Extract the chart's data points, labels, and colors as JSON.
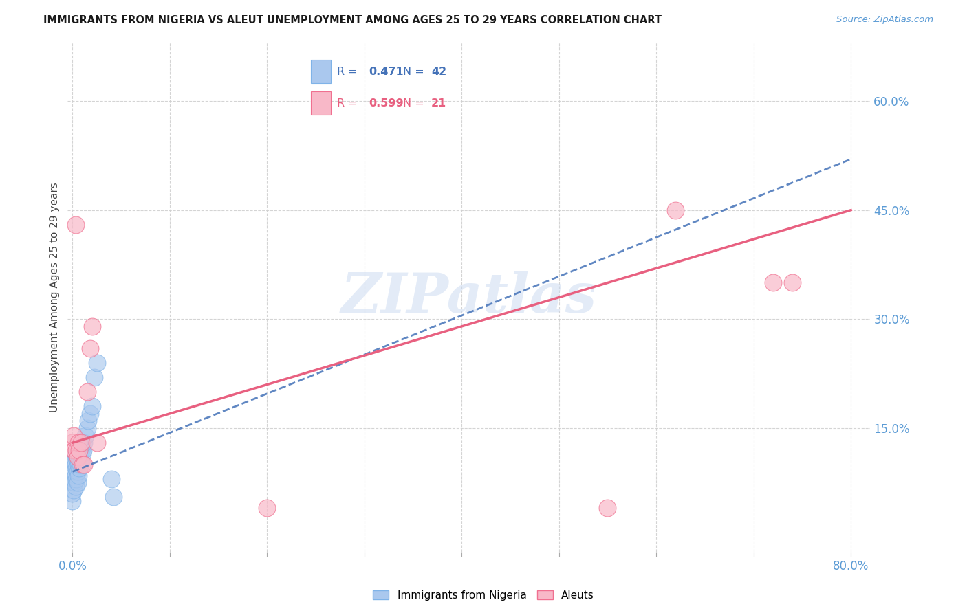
{
  "title": "IMMIGRANTS FROM NIGERIA VS ALEUT UNEMPLOYMENT AMONG AGES 25 TO 29 YEARS CORRELATION CHART",
  "source": "Source: ZipAtlas.com",
  "ylabel": "Unemployment Among Ages 25 to 29 years",
  "watermark": "ZIPatlas",
  "nigeria_R": "0.471",
  "nigeria_N": "42",
  "aleut_R": "0.599",
  "aleut_N": "21",
  "nigeria_scatter_color": "#aac8ee",
  "nigeria_scatter_edge": "#7fb3e8",
  "aleut_scatter_color": "#f8b8c8",
  "aleut_scatter_edge": "#f07090",
  "nigeria_line_color": "#4472b8",
  "aleut_line_color": "#e86080",
  "axis_tick_color": "#5b9bd5",
  "title_color": "#1a1a1a",
  "source_color": "#5b9bd5",
  "grid_color": "#d0d0d0",
  "nigeria_x": [
    0.0,
    0.0,
    0.001,
    0.001,
    0.001,
    0.002,
    0.002,
    0.002,
    0.003,
    0.003,
    0.003,
    0.003,
    0.004,
    0.004,
    0.004,
    0.005,
    0.005,
    0.005,
    0.005,
    0.006,
    0.006,
    0.006,
    0.007,
    0.007,
    0.007,
    0.008,
    0.008,
    0.009,
    0.009,
    0.01,
    0.01,
    0.011,
    0.012,
    0.013,
    0.015,
    0.016,
    0.018,
    0.02,
    0.022,
    0.025,
    0.04,
    0.042
  ],
  "nigeria_y": [
    0.05,
    0.06,
    0.065,
    0.08,
    0.1,
    0.075,
    0.09,
    0.105,
    0.07,
    0.085,
    0.1,
    0.115,
    0.08,
    0.095,
    0.11,
    0.075,
    0.09,
    0.105,
    0.12,
    0.085,
    0.1,
    0.115,
    0.095,
    0.11,
    0.125,
    0.1,
    0.115,
    0.105,
    0.12,
    0.115,
    0.13,
    0.12,
    0.13,
    0.14,
    0.15,
    0.16,
    0.17,
    0.18,
    0.22,
    0.24,
    0.08,
    0.055
  ],
  "aleut_x": [
    0.0,
    0.001,
    0.001,
    0.002,
    0.003,
    0.004,
    0.005,
    0.006,
    0.007,
    0.009,
    0.01,
    0.012,
    0.015,
    0.018,
    0.02,
    0.025,
    0.2,
    0.55,
    0.62,
    0.72,
    0.74
  ],
  "aleut_y": [
    0.13,
    0.12,
    0.14,
    0.12,
    0.43,
    0.12,
    0.11,
    0.13,
    0.12,
    0.13,
    0.1,
    0.1,
    0.2,
    0.26,
    0.29,
    0.13,
    0.04,
    0.04,
    0.45,
    0.35,
    0.35
  ],
  "nigeria_trend": [
    0.0,
    0.8,
    0.09,
    0.52
  ],
  "aleut_trend": [
    0.0,
    0.8,
    0.13,
    0.45
  ],
  "xlim": [
    -0.005,
    0.82
  ],
  "ylim": [
    -0.02,
    0.68
  ],
  "y_ticks": [
    0.15,
    0.3,
    0.45,
    0.6
  ],
  "x_tick_positions": [
    0.0,
    0.1,
    0.2,
    0.3,
    0.4,
    0.5,
    0.6,
    0.7,
    0.8
  ]
}
